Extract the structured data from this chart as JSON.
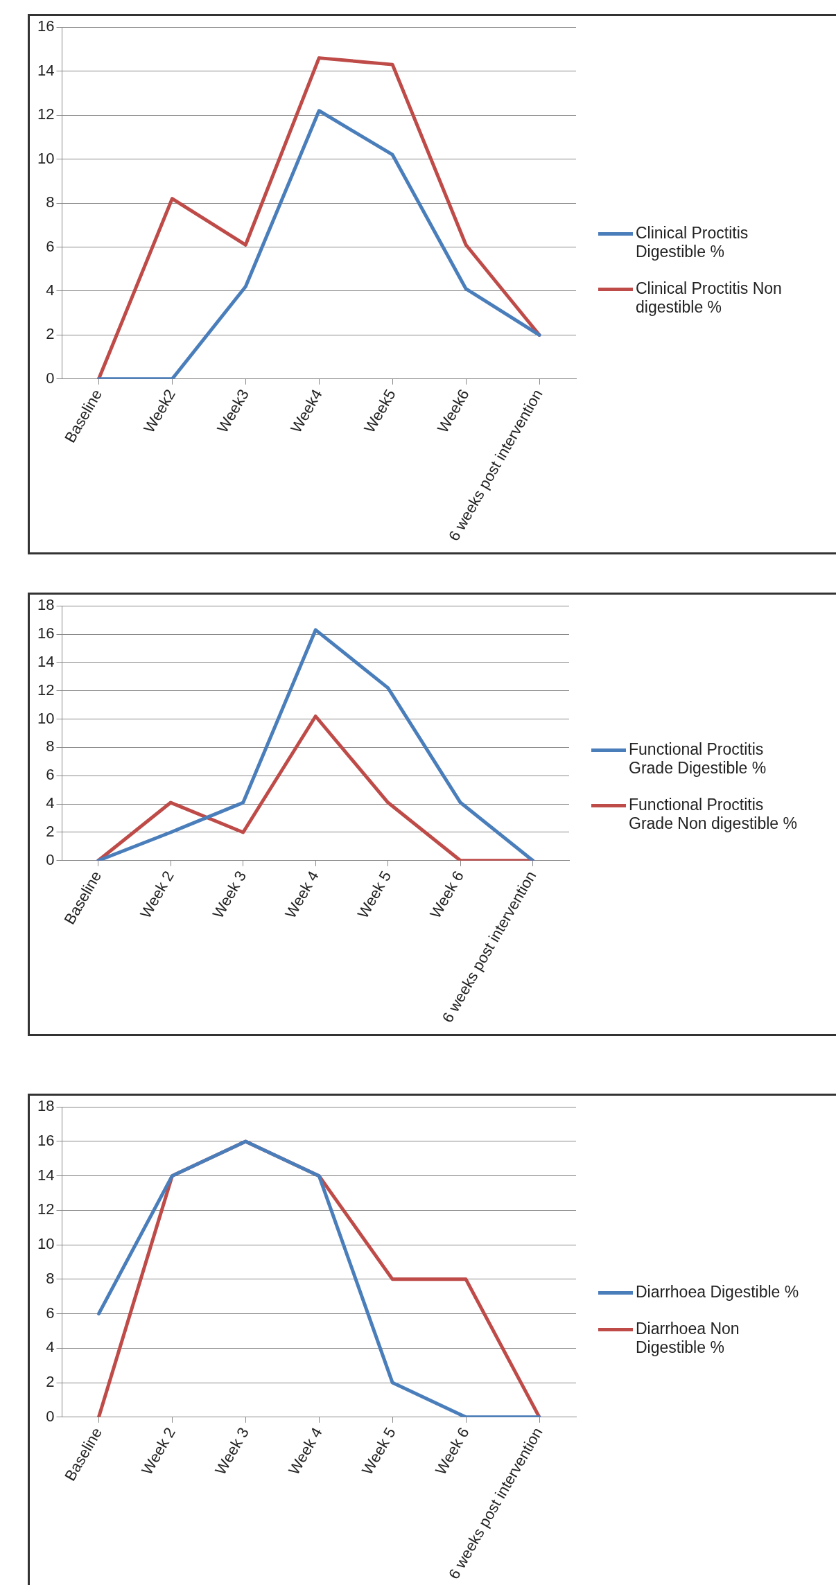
{
  "chart_data": [
    {
      "type": "line",
      "categories": [
        "Baseline",
        "Week2",
        "Week3",
        "Week4",
        "Week5",
        "Week6",
        "6 weeks post intervention"
      ],
      "series": [
        {
          "name": "Clinical Proctitis Digestible %",
          "color": "#4a7ebb",
          "values": [
            0,
            0,
            4.2,
            12.2,
            10.2,
            4.1,
            2
          ]
        },
        {
          "name": "Clinical Proctitis Non digestible %",
          "color": "#be4b48",
          "values": [
            0,
            8.2,
            6.1,
            14.6,
            14.3,
            6.1,
            2
          ]
        }
      ],
      "ylim": [
        0,
        16
      ],
      "yticks": [
        0,
        2,
        4,
        6,
        8,
        10,
        12,
        14,
        16
      ],
      "grid": "y",
      "legend": "right",
      "marker": "none",
      "line_style": "solid"
    },
    {
      "type": "line",
      "categories": [
        "Baseline",
        "Week 2",
        "Week 3",
        "Week 4",
        "Week 5",
        "Week 6",
        "6 weeks post intervention"
      ],
      "series": [
        {
          "name": "Functional Proctitis Grade Digestible %",
          "color": "#4a7ebb",
          "values": [
            0,
            2,
            4.1,
            16.3,
            12.2,
            4.1,
            0
          ]
        },
        {
          "name": "Functional Proctitis Grade Non digestible %",
          "color": "#be4b48",
          "values": [
            0,
            4.1,
            2,
            10.2,
            4.1,
            0,
            0
          ]
        }
      ],
      "ylim": [
        0,
        18
      ],
      "yticks": [
        0,
        2,
        4,
        6,
        8,
        10,
        12,
        14,
        16,
        18
      ],
      "grid": "y",
      "legend": "right",
      "marker": "none",
      "line_style": "solid"
    },
    {
      "type": "line",
      "categories": [
        "Baseline",
        "Week 2",
        "Week 3",
        "Week 4",
        "Week 5",
        "Week 6",
        "6 weeks post intervention"
      ],
      "series": [
        {
          "name": "Diarrhoea Digestible %",
          "color": "#4a7ebb",
          "values": [
            6,
            14,
            16,
            14,
            2,
            0,
            0
          ]
        },
        {
          "name": "Diarrhoea Non Digestible %",
          "color": "#be4b48",
          "values": [
            0,
            14,
            16,
            14,
            8,
            8,
            0
          ]
        }
      ],
      "ylim": [
        0,
        18
      ],
      "yticks": [
        0,
        2,
        4,
        6,
        8,
        10,
        12,
        14,
        16,
        18
      ],
      "grid": "y",
      "legend": "right",
      "marker": "none",
      "line_style": "solid"
    }
  ]
}
